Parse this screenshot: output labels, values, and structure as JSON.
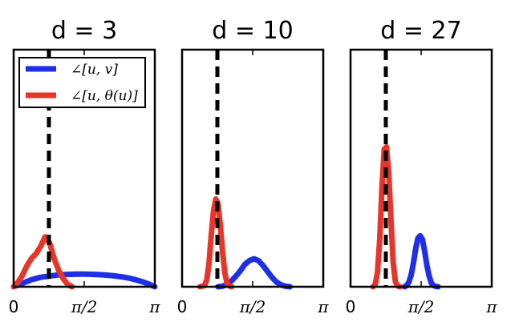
{
  "chart_data": [
    {
      "type": "line",
      "title": "d = 3",
      "xlim": [
        0,
        3.14159
      ],
      "ylim": [
        0,
        1
      ],
      "vline_x": 0.785,
      "xticks": [
        {
          "value": 0,
          "label": "0"
        },
        {
          "value": 1.5708,
          "label": "π/2"
        },
        {
          "value": 3.14159,
          "label": "π"
        }
      ],
      "legend": {
        "placement": "top-left",
        "entries": [
          {
            "label": "∠[u, v]",
            "color": "#1f2fe8"
          },
          {
            "label": "∠[u, θ(u)]",
            "color": "#e8352a"
          }
        ]
      },
      "series": [
        {
          "name": "∠[u, v]",
          "color": "#1f2fe8",
          "x": [
            0.0,
            0.2,
            0.4,
            0.6,
            0.8,
            1.0,
            1.2,
            1.4,
            1.6,
            1.8,
            2.0,
            2.2,
            2.4,
            2.6,
            2.8,
            3.0,
            3.14
          ],
          "y": [
            0.0,
            0.015,
            0.03,
            0.04,
            0.045,
            0.05,
            0.052,
            0.053,
            0.053,
            0.052,
            0.05,
            0.047,
            0.042,
            0.035,
            0.025,
            0.012,
            0.0
          ]
        },
        {
          "name": "∠[u, θ(u)]",
          "color": "#e8352a",
          "x": [
            0.0,
            0.1,
            0.2,
            0.3,
            0.4,
            0.5,
            0.6,
            0.7,
            0.8,
            0.9,
            1.0,
            1.1,
            1.2,
            1.3
          ],
          "y": [
            0.0,
            0.02,
            0.05,
            0.09,
            0.12,
            0.14,
            0.17,
            0.21,
            0.185,
            0.12,
            0.07,
            0.035,
            0.01,
            0.0
          ]
        }
      ]
    },
    {
      "type": "line",
      "title": "d = 10",
      "xlim": [
        0,
        3.14159
      ],
      "ylim": [
        0,
        1
      ],
      "vline_x": 0.785,
      "xticks": [
        {
          "value": 0,
          "label": "0"
        },
        {
          "value": 1.5708,
          "label": "π/2"
        },
        {
          "value": 3.14159,
          "label": "π"
        }
      ],
      "series": [
        {
          "name": "∠[u, v]",
          "color": "#1f2fe8",
          "x": [
            0.8,
            0.9,
            1.0,
            1.1,
            1.2,
            1.3,
            1.4,
            1.5,
            1.6,
            1.7,
            1.8,
            1.9,
            2.0,
            2.1,
            2.2,
            2.3,
            2.4
          ],
          "y": [
            0.0,
            0.002,
            0.01,
            0.025,
            0.045,
            0.068,
            0.095,
            0.11,
            0.118,
            0.11,
            0.09,
            0.065,
            0.04,
            0.02,
            0.008,
            0.002,
            0.0
          ]
        },
        {
          "name": "∠[u, θ(u)]",
          "color": "#e8352a",
          "x": [
            0.4,
            0.5,
            0.55,
            0.6,
            0.65,
            0.7,
            0.75,
            0.8,
            0.85,
            0.9,
            0.95,
            1.0,
            1.05,
            1.1
          ],
          "y": [
            0.0,
            0.005,
            0.03,
            0.1,
            0.22,
            0.32,
            0.37,
            0.35,
            0.26,
            0.15,
            0.06,
            0.015,
            0.003,
            0.0
          ]
        }
      ]
    },
    {
      "type": "line",
      "title": "d = 27",
      "xlim": [
        0,
        3.14159
      ],
      "ylim": [
        0,
        1
      ],
      "vline_x": 0.785,
      "xticks": [
        {
          "value": 0,
          "label": "0"
        },
        {
          "value": 1.5708,
          "label": "π/2"
        },
        {
          "value": 3.14159,
          "label": "π"
        }
      ],
      "series": [
        {
          "name": "∠[u, v]",
          "color": "#1f2fe8",
          "x": [
            1.2,
            1.25,
            1.3,
            1.35,
            1.4,
            1.45,
            1.5,
            1.55,
            1.6,
            1.65,
            1.7,
            1.75,
            1.8,
            1.85,
            1.9,
            1.95
          ],
          "y": [
            0.0,
            0.005,
            0.02,
            0.05,
            0.1,
            0.16,
            0.205,
            0.215,
            0.2,
            0.15,
            0.09,
            0.045,
            0.015,
            0.005,
            0.001,
            0.0
          ]
        },
        {
          "name": "∠[u, θ(u)]",
          "color": "#e8352a",
          "x": [
            0.5,
            0.55,
            0.6,
            0.65,
            0.7,
            0.75,
            0.8,
            0.85,
            0.9,
            0.95,
            1.0,
            1.05,
            1.1
          ],
          "y": [
            0.0,
            0.01,
            0.06,
            0.2,
            0.42,
            0.58,
            0.59,
            0.48,
            0.28,
            0.1,
            0.02,
            0.003,
            0.0
          ]
        }
      ]
    }
  ]
}
